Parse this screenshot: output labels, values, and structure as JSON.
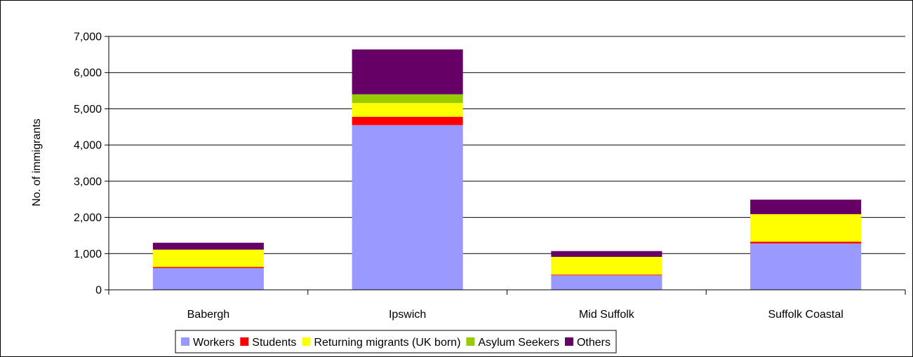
{
  "chart_data": {
    "type": "bar",
    "stacked": true,
    "categories": [
      "Babergh",
      "Ipswich",
      "Mid Suffolk",
      "Suffolk Coastal"
    ],
    "series": [
      {
        "name": "Workers",
        "color": "#9999ff",
        "values": [
          600,
          4550,
          400,
          1280
        ]
      },
      {
        "name": "Students",
        "color": "#ff0000",
        "values": [
          30,
          230,
          20,
          50
        ]
      },
      {
        "name": "Returning migrants (UK born)",
        "color": "#ffff00",
        "values": [
          480,
          380,
          490,
          760
        ]
      },
      {
        "name": "Asylum Seekers",
        "color": "#99cc00",
        "values": [
          0,
          240,
          0,
          0
        ]
      },
      {
        "name": "Others",
        "color": "#660066",
        "values": [
          190,
          1240,
          160,
          400
        ]
      }
    ],
    "ylabel": "No. of immigrants",
    "xlabel": "",
    "ylim": [
      0,
      7000
    ],
    "yticks": [
      "0",
      "1,000",
      "2,000",
      "3,000",
      "4,000",
      "5,000",
      "6,000",
      "7,000"
    ],
    "grid": true,
    "legend_position": "bottom"
  }
}
